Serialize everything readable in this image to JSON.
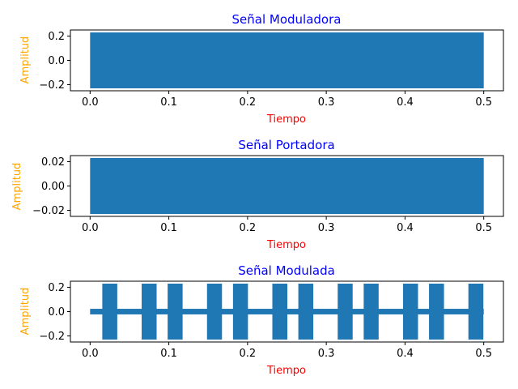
{
  "chart_data": [
    {
      "type": "line",
      "title": "Señal Moduladora",
      "xlabel": "Tiempo",
      "ylabel": "Amplitud",
      "xlim": [
        -0.025,
        0.525
      ],
      "ylim": [
        -0.25,
        0.25
      ],
      "xticks": [
        "0.0",
        "0.1",
        "0.2",
        "0.3",
        "0.4",
        "0.5"
      ],
      "yticks": [
        "0.2",
        "0.0",
        "−0.2"
      ],
      "grid": false,
      "series": [
        {
          "color": "#1f77b4",
          "x_range": [
            0.0,
            0.5
          ],
          "envelope": [
            {
              "x0": 0.0,
              "x1": 0.5,
              "amplitude": 0.23
            }
          ]
        }
      ]
    },
    {
      "type": "line",
      "title": "Señal Portadora",
      "xlabel": "Tiempo",
      "ylabel": "Amplitud",
      "xlim": [
        -0.025,
        0.525
      ],
      "ylim": [
        -0.025,
        0.025
      ],
      "xticks": [
        "0.0",
        "0.1",
        "0.2",
        "0.3",
        "0.4",
        "0.5"
      ],
      "yticks": [
        "0.02",
        "0.00",
        "−0.02"
      ],
      "grid": false,
      "series": [
        {
          "color": "#1f77b4",
          "x_range": [
            0.0,
            0.5
          ],
          "envelope": [
            {
              "x0": 0.0,
              "x1": 0.5,
              "amplitude": 0.023
            }
          ]
        }
      ]
    },
    {
      "type": "line",
      "title": "Señal Modulada",
      "xlabel": "Tiempo",
      "ylabel": "Amplitud",
      "xlim": [
        -0.025,
        0.525
      ],
      "ylim": [
        -0.25,
        0.25
      ],
      "xticks": [
        "0.0",
        "0.1",
        "0.2",
        "0.3",
        "0.4",
        "0.5"
      ],
      "yticks": [
        "0.2",
        "0.0",
        "−0.2"
      ],
      "grid": false,
      "series": [
        {
          "color": "#1f77b4",
          "x_range": [
            0.0,
            0.5
          ],
          "baseline_amplitude": 0.023,
          "envelope": [
            {
              "x0": 0.0,
              "x1": 0.5,
              "amplitude": 0.023
            },
            {
              "x0": 0.0155,
              "x1": 0.0345,
              "amplitude": 0.23
            },
            {
              "x0": 0.0655,
              "x1": 0.0845,
              "amplitude": 0.23
            },
            {
              "x0": 0.0985,
              "x1": 0.1175,
              "amplitude": 0.23
            },
            {
              "x0": 0.1485,
              "x1": 0.1675,
              "amplitude": 0.23
            },
            {
              "x0": 0.1815,
              "x1": 0.2005,
              "amplitude": 0.23
            },
            {
              "x0": 0.2315,
              "x1": 0.2505,
              "amplitude": 0.23
            },
            {
              "x0": 0.2645,
              "x1": 0.2835,
              "amplitude": 0.23
            },
            {
              "x0": 0.3145,
              "x1": 0.3335,
              "amplitude": 0.23
            },
            {
              "x0": 0.3475,
              "x1": 0.3665,
              "amplitude": 0.23
            },
            {
              "x0": 0.3975,
              "x1": 0.4165,
              "amplitude": 0.23
            },
            {
              "x0": 0.4305,
              "x1": 0.4495,
              "amplitude": 0.23
            },
            {
              "x0": 0.4805,
              "x1": 0.4995,
              "amplitude": 0.23
            }
          ]
        }
      ]
    }
  ]
}
